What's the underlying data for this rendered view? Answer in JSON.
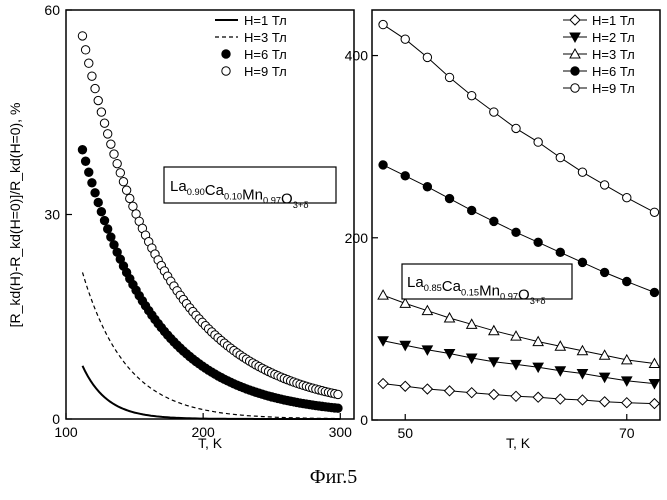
{
  "figure_caption": "Фиг.5",
  "chart_data": [
    {
      "type": "line",
      "xlabel": "T, K",
      "ylabel": "[R_kd(H)-R_kd(H=0)]/R_kd(H=0), %",
      "xlim": [
        100,
        310
      ],
      "ylim": [
        0,
        60
      ],
      "x_ticks": [
        100,
        200,
        300
      ],
      "y_ticks": [
        0,
        30,
        60
      ],
      "legend_placement": "top-right",
      "annotation": {
        "base": "La",
        "parts": [
          [
            "0.90",
            ""
          ],
          [
            "Ca",
            ""
          ],
          [
            "0.10",
            ""
          ],
          [
            "Mn",
            ""
          ],
          [
            "0.97",
            ""
          ],
          [
            "O",
            ""
          ],
          [
            "3+δ",
            ""
          ]
        ]
      },
      "annotation_text": "La0.90Ca0.10Mn0.97O3+δ",
      "series": [
        {
          "name": "H=1 Тл",
          "style": "solid",
          "T_start": 112,
          "T_end": 300,
          "A": 7.8,
          "tau": 18
        },
        {
          "name": "H=3 Тл",
          "style": "dashed",
          "T_start": 112,
          "T_end": 300,
          "A": 21.5,
          "tau": 32
        },
        {
          "name": "H=6 Тл",
          "style": "filled-circle",
          "T_start": 112,
          "T_end": 300,
          "A": 39,
          "tau": 52,
          "C": 0.5
        },
        {
          "name": "H=9 Тл",
          "style": "open-circle",
          "T_start": 112,
          "T_end": 300,
          "A": 55.2,
          "tau": 61,
          "C": 1.0
        }
      ]
    },
    {
      "type": "line",
      "xlabel": "T, K",
      "ylabel": "",
      "xlim": [
        47,
        73
      ],
      "ylim": [
        0,
        450
      ],
      "x_ticks": [
        50,
        70
      ],
      "y_ticks": [
        0,
        200,
        400
      ],
      "legend_placement": "top-right",
      "annotation_text": "La0.85Ca0.15Mn0.97O3+δ",
      "x": [
        48,
        50,
        52,
        54,
        56,
        58,
        60,
        62,
        64,
        66,
        68,
        70,
        72.5
      ],
      "series": [
        {
          "name": "H=1 Тл",
          "marker": "open-diamond",
          "values": [
            40,
            37,
            34,
            32,
            30,
            28,
            26,
            25,
            23,
            22,
            20,
            19,
            18
          ]
        },
        {
          "name": "H=2 Тл",
          "marker": "filled-triangle-down",
          "values": [
            87,
            82,
            77,
            73,
            68,
            64,
            61,
            58,
            54,
            51,
            47,
            43,
            40
          ]
        },
        {
          "name": "H=3 Тл",
          "marker": "open-triangle-up",
          "values": [
            137,
            128,
            120,
            112,
            105,
            98,
            92,
            86,
            81,
            76,
            71,
            66,
            62
          ]
        },
        {
          "name": "H=6 Тл",
          "marker": "filled-circle",
          "values": [
            280,
            268,
            256,
            243,
            230,
            218,
            206,
            195,
            184,
            173,
            162,
            152,
            140
          ]
        },
        {
          "name": "H=9 Тл",
          "marker": "open-circle",
          "values": [
            434,
            418,
            398,
            376,
            356,
            338,
            320,
            305,
            288,
            272,
            258,
            244,
            228
          ]
        }
      ]
    }
  ]
}
